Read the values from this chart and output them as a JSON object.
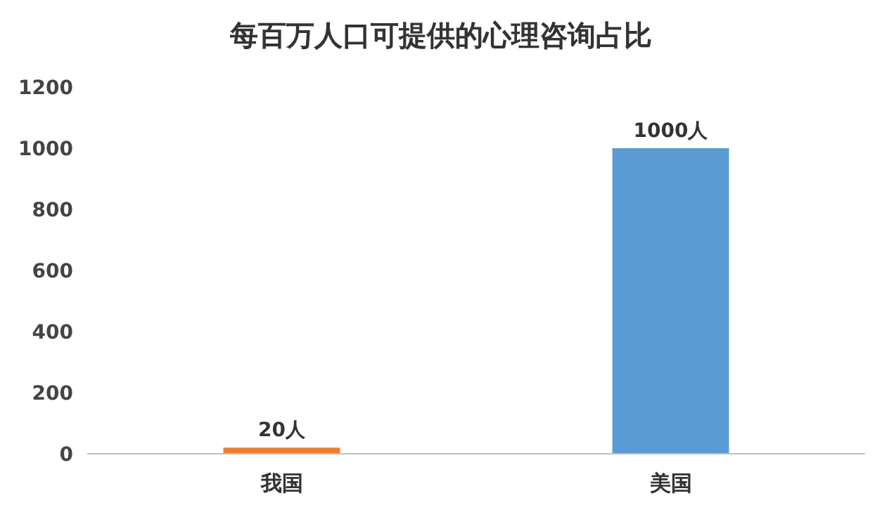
{
  "chart_data": {
    "type": "bar",
    "title": "每百万人口可提供的心理咨询占比",
    "categories": [
      "我国",
      "美国"
    ],
    "values": [
      20,
      1000
    ],
    "colors": [
      "#ed7d31",
      "#5b9bd5"
    ],
    "value_labels": [
      "20人",
      "1000人"
    ],
    "ylim": [
      0,
      1200
    ],
    "yticks": [
      0,
      200,
      400,
      600,
      800,
      1000,
      1200
    ],
    "grid": false
  }
}
